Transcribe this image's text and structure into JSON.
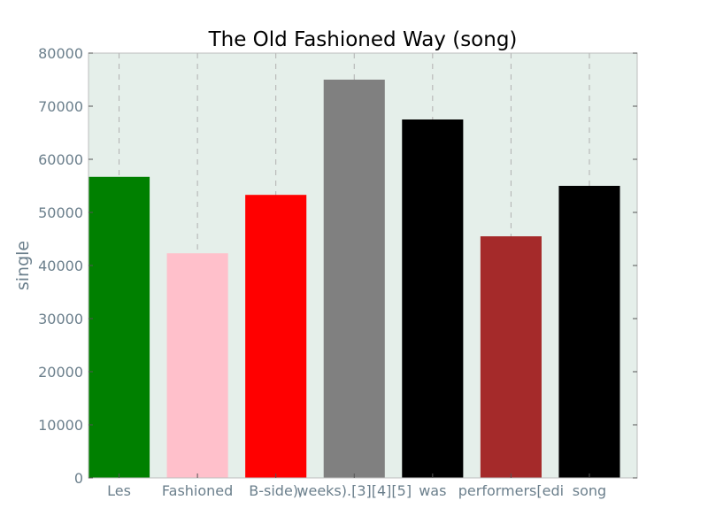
{
  "chart_data": {
    "type": "bar",
    "title": "The Old Fashioned Way (song)",
    "xlabel": "",
    "ylabel": "single",
    "categories": [
      "Les",
      "Fashioned",
      "B-side),",
      "weeks).[3][4][5]",
      "was",
      "performers[edi",
      "song"
    ],
    "values": [
      56700,
      42300,
      53300,
      75000,
      67500,
      45500,
      55000
    ],
    "colors": [
      "#008000",
      "#ffc0cb",
      "#ff0000",
      "#808080",
      "#000000",
      "#a52a2a",
      "#000000"
    ],
    "ylim": [
      0,
      80000
    ],
    "yticks": [
      0,
      10000,
      20000,
      30000,
      40000,
      50000,
      60000,
      70000,
      80000
    ],
    "grid": "vertical dashed",
    "background": "#e5efea",
    "legend": "none"
  }
}
